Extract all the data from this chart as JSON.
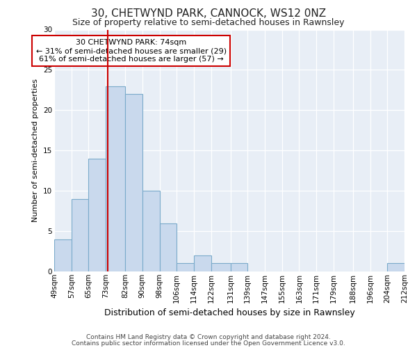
{
  "title": "30, CHETWYND PARK, CANNOCK, WS12 0NZ",
  "subtitle": "Size of property relative to semi-detached houses in Rawnsley",
  "xlabel": "Distribution of semi-detached houses by size in Rawnsley",
  "ylabel": "Number of semi-detached properties",
  "footer_line1": "Contains HM Land Registry data © Crown copyright and database right 2024.",
  "footer_line2": "Contains public sector information licensed under the Open Government Licence v3.0.",
  "annotation_title": "30 CHETWYND PARK: 74sqm",
  "annotation_line1": "← 31% of semi-detached houses are smaller (29)",
  "annotation_line2": "61% of semi-detached houses are larger (57) →",
  "property_size": 74,
  "bar_color": "#c9d9ed",
  "bar_edge_color": "#7aaaca",
  "vline_color": "#cc0000",
  "annotation_box_edge_color": "#cc0000",
  "fig_background_color": "#ffffff",
  "plot_background_color": "#e8eef6",
  "grid_color": "#ffffff",
  "bin_edges": [
    49,
    57,
    65,
    73,
    82,
    90,
    98,
    106,
    114,
    122,
    131,
    139,
    147,
    155,
    163,
    171,
    179,
    188,
    196,
    204,
    212
  ],
  "bin_heights": [
    4,
    9,
    14,
    23,
    22,
    10,
    6,
    1,
    2,
    1,
    1,
    0,
    0,
    0,
    0,
    0,
    0,
    0,
    0,
    1
  ],
  "tick_labels": [
    "49sqm",
    "57sqm",
    "65sqm",
    "73sqm",
    "82sqm",
    "90sqm",
    "98sqm",
    "106sqm",
    "114sqm",
    "122sqm",
    "131sqm",
    "139sqm",
    "147sqm",
    "155sqm",
    "163sqm",
    "171sqm",
    "179sqm",
    "188sqm",
    "196sqm",
    "204sqm",
    "212sqm"
  ],
  "ylim": [
    0,
    30
  ],
  "yticks": [
    0,
    5,
    10,
    15,
    20,
    25,
    30
  ],
  "title_fontsize": 11,
  "subtitle_fontsize": 9,
  "xlabel_fontsize": 9,
  "ylabel_fontsize": 8,
  "tick_fontsize": 7.5,
  "footer_fontsize": 6.5
}
